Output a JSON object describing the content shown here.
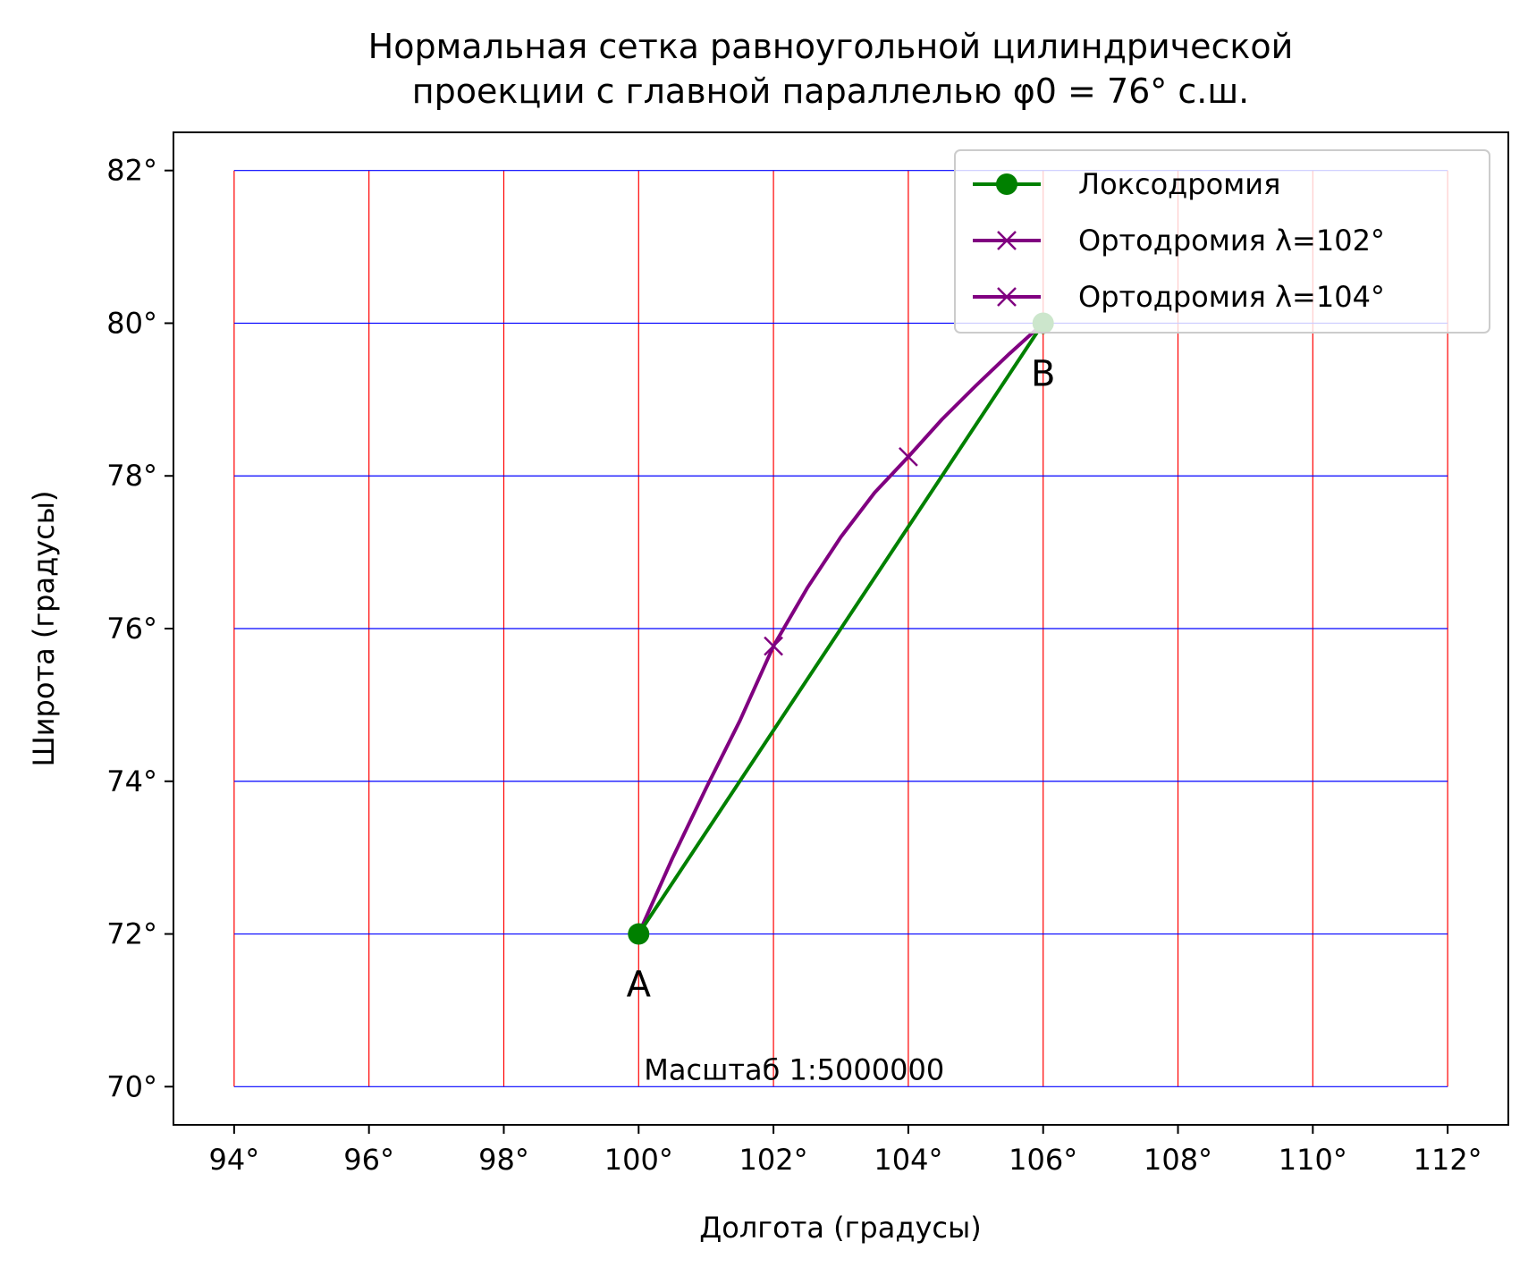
{
  "chart_data": {
    "type": "line",
    "title": "Нормальная сетка равноугольной цилиндрической",
    "title_line2": "проекции с главной параллелью φ0 = 76° с.ш.",
    "xlabel": "Долгота (градусы)",
    "ylabel": "Широта (градусы)",
    "xlim": [
      93.1,
      112.9
    ],
    "ylim": [
      69.5,
      82.5
    ],
    "x_ticks": [
      94,
      96,
      98,
      100,
      102,
      104,
      106,
      108,
      110,
      112
    ],
    "x_tick_labels": [
      "94°",
      "96°",
      "98°",
      "100°",
      "102°",
      "104°",
      "106°",
      "108°",
      "110°",
      "112°"
    ],
    "y_ticks": [
      70,
      72,
      74,
      76,
      78,
      80,
      82
    ],
    "y_tick_labels": [
      "70°",
      "72°",
      "74°",
      "76°",
      "78°",
      "80°",
      "82°"
    ],
    "grid": {
      "meridians": [
        94,
        96,
        98,
        100,
        102,
        104,
        106,
        108,
        110,
        112
      ],
      "parallels": [
        70,
        72,
        74,
        76,
        78,
        80,
        82
      ],
      "meridian_color": "#ff0000",
      "parallel_color": "#0000ff"
    },
    "series": [
      {
        "name": "Локсодромия",
        "color": "#008000",
        "marker": "circle",
        "x": [
          100,
          106
        ],
        "y": [
          72,
          80
        ]
      },
      {
        "name": "Ортодромия λ=102°",
        "color": "#800080",
        "marker": "x",
        "marker_points": [
          [
            102,
            75.77
          ]
        ],
        "x": [
          100,
          100.5,
          101,
          101.5,
          102,
          102.5,
          103,
          103.5,
          104,
          104.5,
          105,
          105.5,
          106
        ],
        "y": [
          72,
          72.99,
          73.91,
          74.79,
          75.77,
          76.53,
          77.2,
          77.78,
          78.25,
          78.74,
          79.18,
          79.6,
          80
        ]
      },
      {
        "name": "Ортодромия λ=104°",
        "color": "#800080",
        "marker": "x",
        "marker_points": [
          [
            104,
            78.25
          ]
        ],
        "x": [],
        "y": []
      }
    ],
    "legend_location": "top-right",
    "annotations": [
      {
        "text": "A",
        "x": 100,
        "y": 72
      },
      {
        "text": "B",
        "x": 106,
        "y": 80
      },
      {
        "text": "Масштаб 1:5000000",
        "x": 100,
        "y": 70
      }
    ]
  }
}
